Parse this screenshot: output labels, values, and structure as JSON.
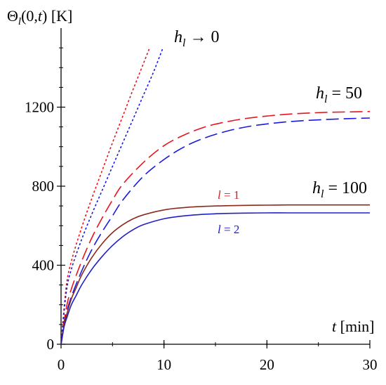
{
  "chart_data": {
    "type": "line",
    "ylabel": "Θ_l(0,t) [K]",
    "xlabel": "t [min]",
    "xlim": [
      0,
      30
    ],
    "ylim": [
      0,
      1600
    ],
    "xticks": [
      0,
      10,
      20,
      30
    ],
    "yticks": [
      0,
      400,
      800,
      1200
    ],
    "yticks_minor_step": 100,
    "xticks_minor_step": 5,
    "grid": false,
    "annotations": {
      "h0": {
        "main": "h",
        "sub": "l",
        "rest": " → 0"
      },
      "h50": {
        "main": "h",
        "sub": "l",
        "rest": " = 50"
      },
      "h100": {
        "main": "h",
        "sub": "l",
        "rest": " = 100"
      },
      "l1": {
        "main": "l",
        "rest": " = 1",
        "color": "#d62020"
      },
      "l2": {
        "main": "l",
        "rest": " = 2",
        "color": "#2020c8"
      }
    },
    "series": [
      {
        "group": "h_l → 0",
        "l": 1,
        "color": "#e8141e",
        "dash": "dotted",
        "x": [
          0,
          0.5,
          1,
          2,
          3,
          4,
          5,
          6,
          7,
          8,
          8.6
        ],
        "y": [
          0,
          290,
          420,
          590,
          740,
          880,
          1020,
          1155,
          1290,
          1420,
          1500
        ]
      },
      {
        "group": "h_l → 0",
        "l": 2,
        "color": "#1a1ae0",
        "dash": "dotted",
        "x": [
          0,
          0.5,
          1,
          2,
          3,
          4,
          5,
          6,
          7,
          8,
          9,
          9.9
        ],
        "y": [
          0,
          260,
          380,
          530,
          660,
          780,
          900,
          1020,
          1140,
          1260,
          1380,
          1500
        ]
      },
      {
        "group": "h_l = 50",
        "l": 1,
        "color": "#e8141e",
        "dash": "long",
        "x": [
          0,
          0.5,
          1,
          2,
          3,
          4,
          5,
          6,
          8,
          10,
          12,
          14,
          16,
          18,
          20,
          22,
          24,
          26,
          28,
          30
        ],
        "y": [
          0,
          180,
          280,
          420,
          540,
          640,
          730,
          810,
          920,
          1005,
          1060,
          1100,
          1125,
          1143,
          1155,
          1164,
          1170,
          1174,
          1176,
          1178
        ]
      },
      {
        "group": "h_l = 50",
        "l": 2,
        "color": "#1a1ae0",
        "dash": "long",
        "x": [
          0,
          0.5,
          1,
          2,
          3,
          4,
          5,
          6,
          8,
          10,
          12,
          14,
          16,
          18,
          20,
          22,
          24,
          26,
          28,
          30
        ],
        "y": [
          0,
          150,
          240,
          370,
          480,
          570,
          650,
          730,
          850,
          935,
          1000,
          1045,
          1077,
          1100,
          1115,
          1126,
          1133,
          1138,
          1142,
          1145
        ]
      },
      {
        "group": "h_l = 100",
        "l": 1,
        "color": "#8b2a1a",
        "dash": "solid",
        "x": [
          0,
          0.3,
          0.6,
          1,
          1.5,
          2,
          3,
          4,
          5,
          6,
          7,
          8,
          10,
          12,
          14,
          16,
          18,
          20,
          22,
          25,
          30
        ],
        "y": [
          0,
          100,
          160,
          230,
          290,
          350,
          440,
          510,
          565,
          605,
          635,
          655,
          680,
          692,
          698,
          701,
          703,
          704,
          705,
          705,
          705
        ]
      },
      {
        "group": "h_l = 100",
        "l": 2,
        "color": "#2020c8",
        "dash": "solid",
        "x": [
          0,
          0.3,
          0.6,
          1,
          1.5,
          2,
          3,
          4,
          5,
          6,
          7,
          8,
          10,
          12,
          14,
          16,
          18,
          20,
          22,
          25,
          30
        ],
        "y": [
          0,
          90,
          140,
          200,
          250,
          300,
          380,
          445,
          500,
          545,
          580,
          605,
          635,
          650,
          658,
          662,
          664,
          665,
          665,
          665,
          665
        ]
      }
    ]
  }
}
